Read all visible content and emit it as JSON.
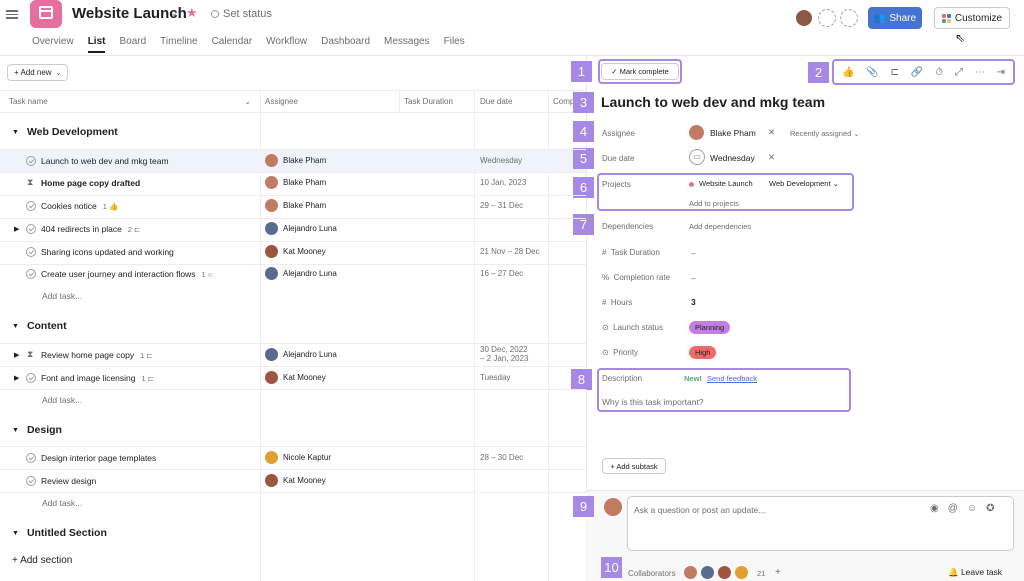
{
  "header": {
    "project_title": "Website Launch",
    "set_status": "Set status",
    "share_label": "Share",
    "customize_label": "Customize"
  },
  "tabs": [
    "Overview",
    "List",
    "Board",
    "Timeline",
    "Calendar",
    "Workflow",
    "Dashboard",
    "Messages",
    "Files"
  ],
  "active_tab": "List",
  "toolbar": {
    "add_new": "+ Add new"
  },
  "columns": [
    "Task name",
    "Assignee",
    "Task Duration",
    "Due date",
    "Comp"
  ],
  "sections": [
    {
      "name": "Web Development",
      "rows": [
        {
          "name": "Launch to web dev and mkg team",
          "assignee": "Blake Pham",
          "due": "Wednesday",
          "icon": "check",
          "selected": true
        },
        {
          "name": "Home page copy drafted",
          "assignee": "Blake Pham",
          "due": "10 Jan, 2023",
          "icon": "hourglass",
          "bold": true
        },
        {
          "name": "Cookies notice",
          "meta": "1 👍",
          "assignee": "Blake Pham",
          "due": "29 – 31 Dec",
          "icon": "check"
        },
        {
          "name": "404 redirects in place",
          "meta": "2 ⊏",
          "assignee": "Alejandro Luna",
          "due": "",
          "icon": "check",
          "expand": true
        },
        {
          "name": "Sharing icons updated and working",
          "assignee": "Kat Mooney",
          "due": "21 Nov – 28 Dec",
          "icon": "check"
        },
        {
          "name": "Create user journey and interaction flows",
          "meta": "1 ○",
          "assignee": "Alejandro Luna",
          "due": "16 – 27 Dec",
          "icon": "check"
        }
      ]
    },
    {
      "name": "Content",
      "rows": [
        {
          "name": "Review home page copy",
          "meta": "1 ⊏",
          "assignee": "Alejandro Luna",
          "due": "30 Dec, 2022\n– 2 Jan, 2023",
          "icon": "hourglass",
          "expand": true
        },
        {
          "name": "Font and image licensing",
          "meta": "1 ⊏",
          "assignee": "Kat Mooney",
          "due": "Tuesday",
          "icon": "check",
          "expand": true
        }
      ]
    },
    {
      "name": "Design",
      "rows": [
        {
          "name": "Design interior page templates",
          "assignee": "Nicole Kaptur",
          "due": "28 – 30 Dec",
          "icon": "check"
        },
        {
          "name": "Review design",
          "assignee": "Kat Mooney",
          "due": "",
          "icon": "check"
        }
      ]
    },
    {
      "name": "Untitled Section",
      "rows": []
    }
  ],
  "add_task": "Add task...",
  "add_section": "+ Add section",
  "panel": {
    "mark_complete": "✓ Mark complete",
    "task_title": "Launch to web dev and mkg team",
    "assignee_label": "Assignee",
    "assignee_value": "Blake Pham",
    "recently_assigned": "Recently assigned ⌄",
    "due_label": "Due date",
    "due_value": "Wednesday",
    "projects_label": "Projects",
    "project_name": "Website Launch",
    "project_section": "Web Development ⌄",
    "add_to_projects": "Add to projects",
    "dependencies_label": "Dependencies",
    "add_dependencies": "Add dependencies",
    "task_duration_label": "Task Duration",
    "task_duration_value": "–",
    "completion_label": "Completion rate",
    "completion_value": "–",
    "hours_label": "Hours",
    "hours_value": "3",
    "launch_status_label": "Launch status",
    "launch_status_value": "Planning",
    "priority_label": "Priority",
    "priority_value": "High",
    "description_label": "Description",
    "new_badge": "New!",
    "send_feedback": "Send feedback",
    "description_placeholder": "Why is this task important?",
    "add_subtask": "+ Add subtask",
    "comment_placeholder": "Ask a question or post an update...",
    "collaborators_label": "Collaborators",
    "collaborators_count": "21",
    "leave_task": "🔔 Leave task"
  },
  "callouts": [
    "1",
    "2",
    "3",
    "4",
    "5",
    "6",
    "7",
    "8",
    "9",
    "10"
  ],
  "colors": {
    "accent": "#4573d2",
    "callout": "#a688e5",
    "project": "#e56fa1",
    "planning": "#c47ee0",
    "high": "#f06a6a"
  }
}
